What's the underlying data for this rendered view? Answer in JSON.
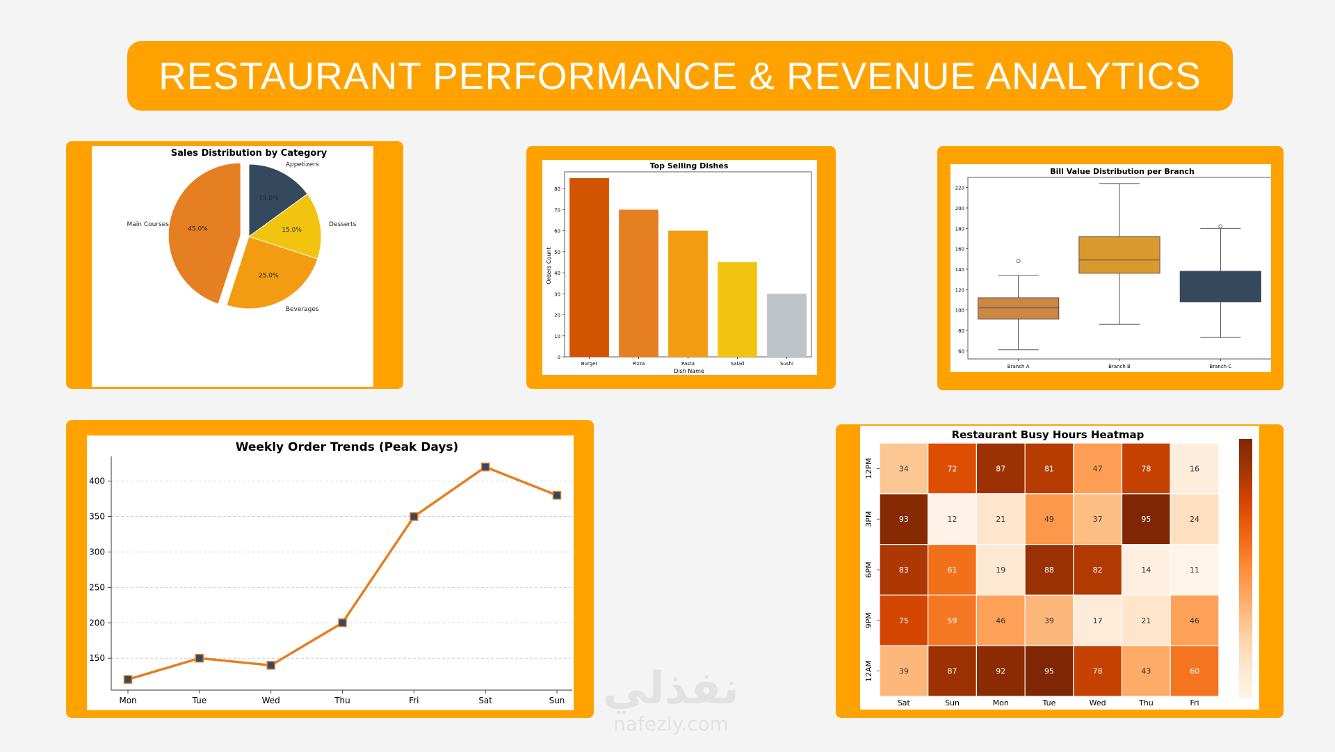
{
  "header": {
    "title": "RESTAURANT PERFORMANCE & REVENUE ANALYTICS"
  },
  "watermark": {
    "arabic": "نفذلي",
    "latin": "nafezly.com"
  },
  "colors": {
    "brand_orange": "#ffa200",
    "navy": "#34495e",
    "dark_orange": "#d35400"
  },
  "chart_data": [
    {
      "type": "pie",
      "title": "Sales Distribution by Category",
      "labels": [
        "Appetizers",
        "Desserts",
        "Beverages",
        "Main Courses"
      ],
      "values": [
        15.0,
        15.0,
        25.0,
        45.0
      ],
      "percent_labels": [
        "15.0%",
        "15.0%",
        "25.0%",
        "45.0%"
      ],
      "colors": [
        "#34495e",
        "#f1c40f",
        "#f39c12",
        "#e67e22"
      ],
      "exploded": "Main Courses"
    },
    {
      "type": "bar",
      "title": "Top Selling Dishes",
      "xlabel": "Dish Name",
      "ylabel": "Orders Count",
      "categories": [
        "Burger",
        "Pizza",
        "Pasta",
        "Salad",
        "Sushi"
      ],
      "values": [
        85,
        70,
        60,
        45,
        30
      ],
      "colors": [
        "#d35400",
        "#e67e22",
        "#f39c12",
        "#f1c40f",
        "#bdc3c7"
      ],
      "ylim": [
        0,
        88
      ],
      "yticks": [
        0,
        10,
        20,
        30,
        40,
        50,
        60,
        70,
        80
      ]
    },
    {
      "type": "box",
      "title": "Bill Value Distribution per Branch",
      "categories": [
        "Branch A",
        "Branch B",
        "Branch C"
      ],
      "boxes": [
        {
          "whislo": 61,
          "q1": 91,
          "med": 102,
          "q3": 112,
          "whishi": 134,
          "fliers": [
            148
          ]
        },
        {
          "whislo": 86,
          "q1": 136,
          "med": 149,
          "q3": 172,
          "whishi": 224,
          "fliers": []
        },
        {
          "whislo": 73,
          "q1": 108,
          "med": 120,
          "q3": 138,
          "whishi": 180,
          "fliers": [
            182
          ]
        }
      ],
      "colors": [
        "#cd8744",
        "#d9992e",
        "#34495e"
      ],
      "ylim": [
        52,
        230
      ],
      "yticks": [
        60,
        80,
        100,
        120,
        140,
        160,
        180,
        200,
        220
      ]
    },
    {
      "type": "line",
      "title": "Weekly Order Trends (Peak Days)",
      "categories": [
        "Mon",
        "Tue",
        "Wed",
        "Thu",
        "Fri",
        "Sat",
        "Sun"
      ],
      "values": [
        120,
        150,
        140,
        200,
        350,
        420,
        380
      ],
      "ylim": [
        105,
        435
      ],
      "yticks": [
        150,
        200,
        250,
        300,
        350,
        400
      ],
      "grid": "y-dashed",
      "line_color": "#e67e22",
      "marker_color": "#34495e"
    },
    {
      "type": "heatmap",
      "title": "Restaurant Busy Hours Heatmap",
      "x_labels": [
        "Sat",
        "Sun",
        "Mon",
        "Tue",
        "Wed",
        "Thu",
        "Fri"
      ],
      "y_labels": [
        "12PM",
        "3PM",
        "6PM",
        "9PM",
        "12AM"
      ],
      "values": [
        [
          34,
          72,
          87,
          81,
          47,
          78,
          16
        ],
        [
          93,
          12,
          21,
          49,
          37,
          95,
          24
        ],
        [
          83,
          61,
          19,
          88,
          82,
          14,
          11
        ],
        [
          75,
          59,
          46,
          39,
          17,
          21,
          46
        ],
        [
          39,
          87,
          92,
          95,
          78,
          43,
          60
        ]
      ],
      "colormap": "Oranges",
      "vmin": 10,
      "vmax": 95
    }
  ]
}
